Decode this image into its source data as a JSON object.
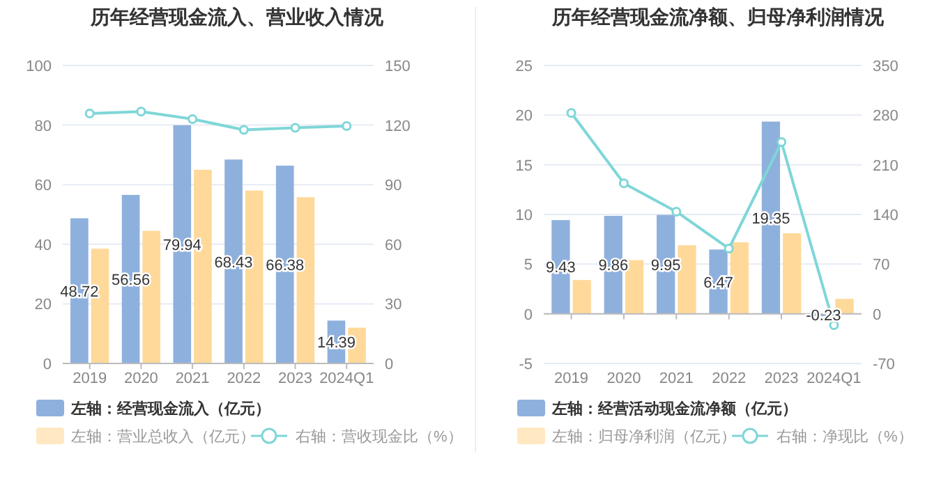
{
  "chart_data": [
    {
      "type": "bar",
      "title": "历年经营现金流入、营业收入情况",
      "categories": [
        "2019",
        "2020",
        "2021",
        "2022",
        "2023",
        "2024Q1"
      ],
      "series": [
        {
          "name": "左轴：经营现金流入（亿元）",
          "color": "#8eb0dd",
          "values": [
            48.72,
            56.56,
            79.94,
            68.43,
            66.38,
            14.39
          ],
          "value_labels": [
            "48.72",
            "56.56",
            "79.94",
            "68.43",
            "66.38",
            "14.39"
          ]
        },
        {
          "name": "左轴：营业总收入（亿元）",
          "color": "#ffd99a",
          "values": [
            38.5,
            44.5,
            65,
            58,
            55.8,
            12
          ]
        },
        {
          "name": "右轴：营收现金比（%）",
          "type": "line",
          "axis": "y2",
          "color": "#7fd6d8",
          "values": [
            125.8,
            126.8,
            123,
            117.6,
            118.6,
            119.5
          ]
        }
      ],
      "ylim": [
        0,
        100
      ],
      "yticks": [
        0,
        20,
        40,
        60,
        80,
        100
      ],
      "y2lim": [
        0,
        150
      ],
      "y2ticks": [
        0,
        30,
        60,
        90,
        120,
        150
      ],
      "grid": "y",
      "legend": "bottom",
      "marker": "circle"
    },
    {
      "type": "bar",
      "title": "历年经营现金流净额、归母净利润情况",
      "categories": [
        "2019",
        "2020",
        "2021",
        "2022",
        "2023",
        "2024Q1"
      ],
      "series": [
        {
          "name": "左轴：经营活动现金流净额（亿元）",
          "color": "#8eb0dd",
          "values": [
            9.43,
            9.86,
            9.95,
            6.47,
            19.35,
            -0.23
          ],
          "value_labels": [
            "9.43",
            "9.86",
            "9.95",
            "6.47",
            "19.35",
            "-0.23"
          ]
        },
        {
          "name": "左轴：归母净利润（亿元）",
          "color": "#ffd99a",
          "values": [
            3.4,
            5.4,
            6.9,
            7.2,
            8.1,
            1.5
          ]
        },
        {
          "name": "右轴：净现比（%）",
          "type": "line",
          "axis": "y2",
          "color": "#7fd6d8",
          "values": [
            283,
            184,
            144,
            92,
            242,
            -16
          ]
        }
      ],
      "ylim": [
        -5,
        25
      ],
      "yticks": [
        -5,
        0,
        5,
        10,
        15,
        20,
        25
      ],
      "y2lim": [
        -70,
        350
      ],
      "y2ticks": [
        -70,
        0,
        70,
        140,
        210,
        280,
        350
      ],
      "grid": "y",
      "legend": "bottom",
      "marker": "circle"
    }
  ]
}
